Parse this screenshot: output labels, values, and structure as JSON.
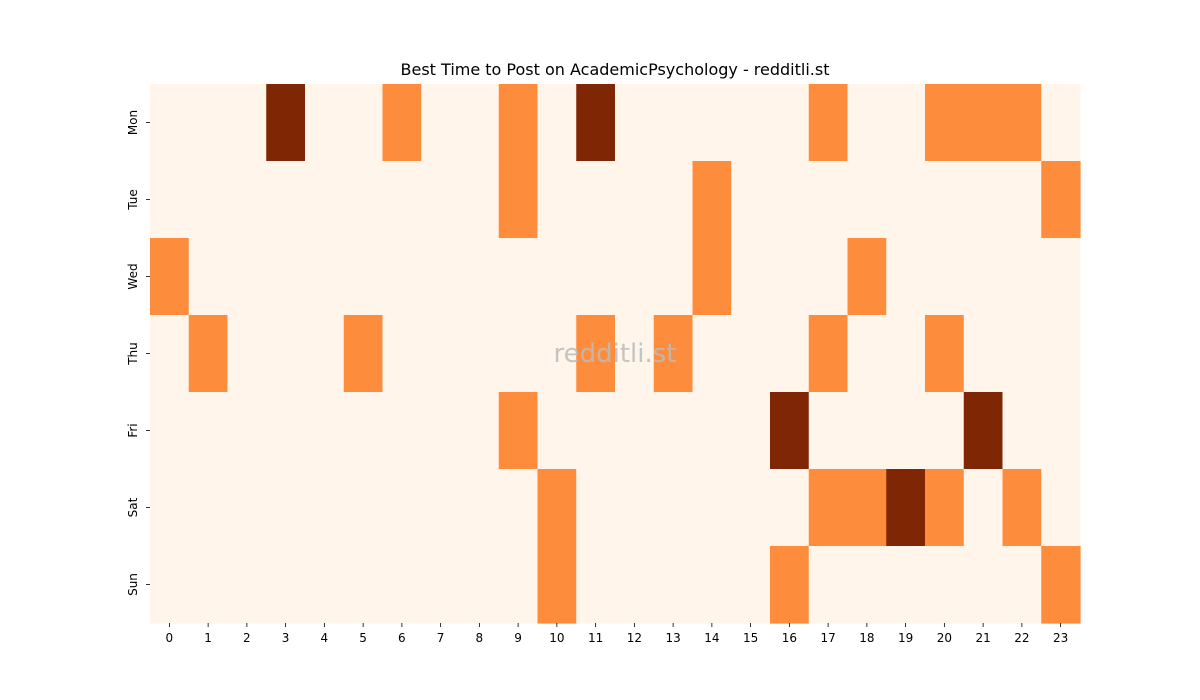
{
  "chart_data": {
    "type": "heatmap",
    "title": "Best Time to Post on AcademicPsychology - redditli.st",
    "watermark": "redditli.st",
    "x_categories": [
      "0",
      "1",
      "2",
      "3",
      "4",
      "5",
      "6",
      "7",
      "8",
      "9",
      "10",
      "11",
      "12",
      "13",
      "14",
      "15",
      "16",
      "17",
      "18",
      "19",
      "20",
      "21",
      "22",
      "23"
    ],
    "y_categories": [
      "Mon",
      "Tue",
      "Wed",
      "Thu",
      "Fri",
      "Sat",
      "Sun"
    ],
    "xlabel": "",
    "ylabel": "",
    "colorbar": false,
    "colors": {
      "0": "#fff5eb",
      "1": "#fd8d3c",
      "2": "#7f2704"
    },
    "values": [
      [
        0,
        0,
        0,
        2,
        0,
        0,
        1,
        0,
        0,
        1,
        0,
        2,
        0,
        0,
        0,
        0,
        0,
        1,
        0,
        0,
        1,
        1,
        1,
        0
      ],
      [
        0,
        0,
        0,
        0,
        0,
        0,
        0,
        0,
        0,
        1,
        0,
        0,
        0,
        0,
        1,
        0,
        0,
        0,
        0,
        0,
        0,
        0,
        0,
        1
      ],
      [
        1,
        0,
        0,
        0,
        0,
        0,
        0,
        0,
        0,
        0,
        0,
        0,
        0,
        0,
        1,
        0,
        0,
        0,
        1,
        0,
        0,
        0,
        0,
        0
      ],
      [
        0,
        1,
        0,
        0,
        0,
        1,
        0,
        0,
        0,
        0,
        0,
        1,
        0,
        1,
        0,
        0,
        0,
        1,
        0,
        0,
        1,
        0,
        0,
        0
      ],
      [
        0,
        0,
        0,
        0,
        0,
        0,
        0,
        0,
        0,
        1,
        0,
        0,
        0,
        0,
        0,
        0,
        2,
        0,
        0,
        0,
        0,
        2,
        0,
        0
      ],
      [
        0,
        0,
        0,
        0,
        0,
        0,
        0,
        0,
        0,
        0,
        1,
        0,
        0,
        0,
        0,
        0,
        0,
        1,
        1,
        2,
        1,
        0,
        1,
        0
      ],
      [
        0,
        0,
        0,
        0,
        0,
        0,
        0,
        0,
        0,
        0,
        1,
        0,
        0,
        0,
        0,
        0,
        1,
        0,
        0,
        0,
        0,
        0,
        0,
        1
      ]
    ]
  }
}
